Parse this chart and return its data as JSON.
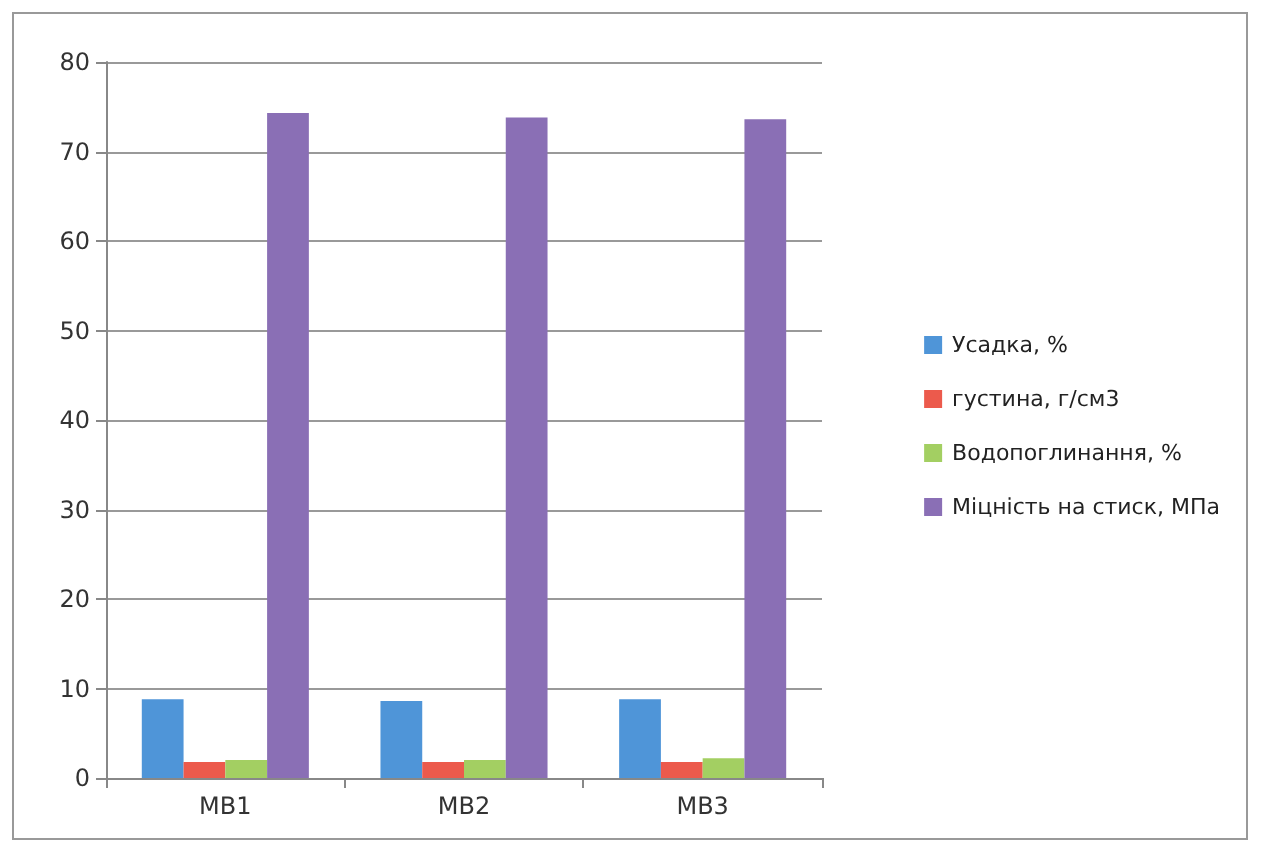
{
  "chart_data": {
    "type": "bar",
    "categories": [
      "МВ1",
      "МВ2",
      "МВ3"
    ],
    "series": [
      {
        "name": "Усадка, %",
        "color": "#4f95d8",
        "values": [
          8.8,
          8.6,
          8.8
        ]
      },
      {
        "name": "густина, г/см3",
        "color": "#ec5a4c",
        "values": [
          1.8,
          1.8,
          1.8
        ]
      },
      {
        "name": "Водопоглинання, %",
        "color": "#a3cf62",
        "values": [
          2.0,
          2.0,
          2.2
        ]
      },
      {
        "name": "Міцність на стиск, МПа",
        "color": "#8a6fb5",
        "values": [
          74.3,
          73.8,
          73.6
        ]
      }
    ],
    "ylim": [
      0,
      80
    ],
    "yticks": [
      0,
      10,
      20,
      30,
      40,
      50,
      60,
      70,
      80
    ],
    "grid": "y",
    "legend": "right"
  }
}
